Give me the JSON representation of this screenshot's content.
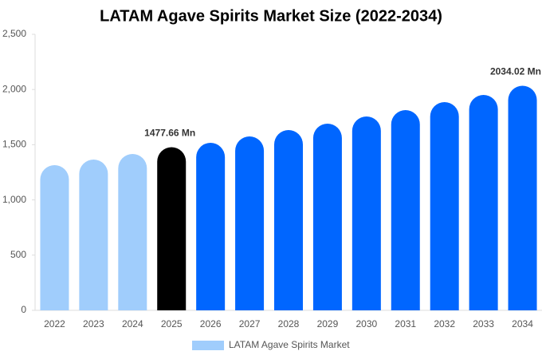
{
  "chart_data": {
    "type": "bar",
    "title": "LATAM Agave Spirits Market Size (2022-2034)",
    "categories": [
      "2022",
      "2023",
      "2024",
      "2025",
      "2026",
      "2027",
      "2028",
      "2029",
      "2030",
      "2031",
      "2032",
      "2033",
      "2034"
    ],
    "series": [
      {
        "name": "LATAM Agave Spirits Market",
        "color": "#a0cdfc",
        "colors": [
          "#a0cdfc",
          "#a0cdfc",
          "#a0cdfc",
          "#000000",
          "#0066ff",
          "#0066ff",
          "#0066ff",
          "#0066ff",
          "#0066ff",
          "#0066ff",
          "#0066ff",
          "#0066ff",
          "#0066ff"
        ],
        "values": [
          1315,
          1366,
          1416,
          1477.66,
          1517,
          1575,
          1633,
          1691,
          1756,
          1814,
          1886,
          1951,
          2034.02
        ],
        "value_labels": [
          null,
          null,
          null,
          "1477.66 Mn",
          null,
          null,
          null,
          null,
          null,
          null,
          null,
          null,
          "2034.02 Mn"
        ]
      }
    ],
    "ylim": [
      0,
      2500
    ],
    "yticks": [
      0,
      500,
      {
        "value": 1000,
        "label": "1,000"
      },
      {
        "value": 1500,
        "label": "1,500"
      },
      {
        "value": 2000,
        "label": "2,000"
      },
      {
        "value": 2500,
        "label": "2,500"
      }
    ],
    "grid": false
  }
}
